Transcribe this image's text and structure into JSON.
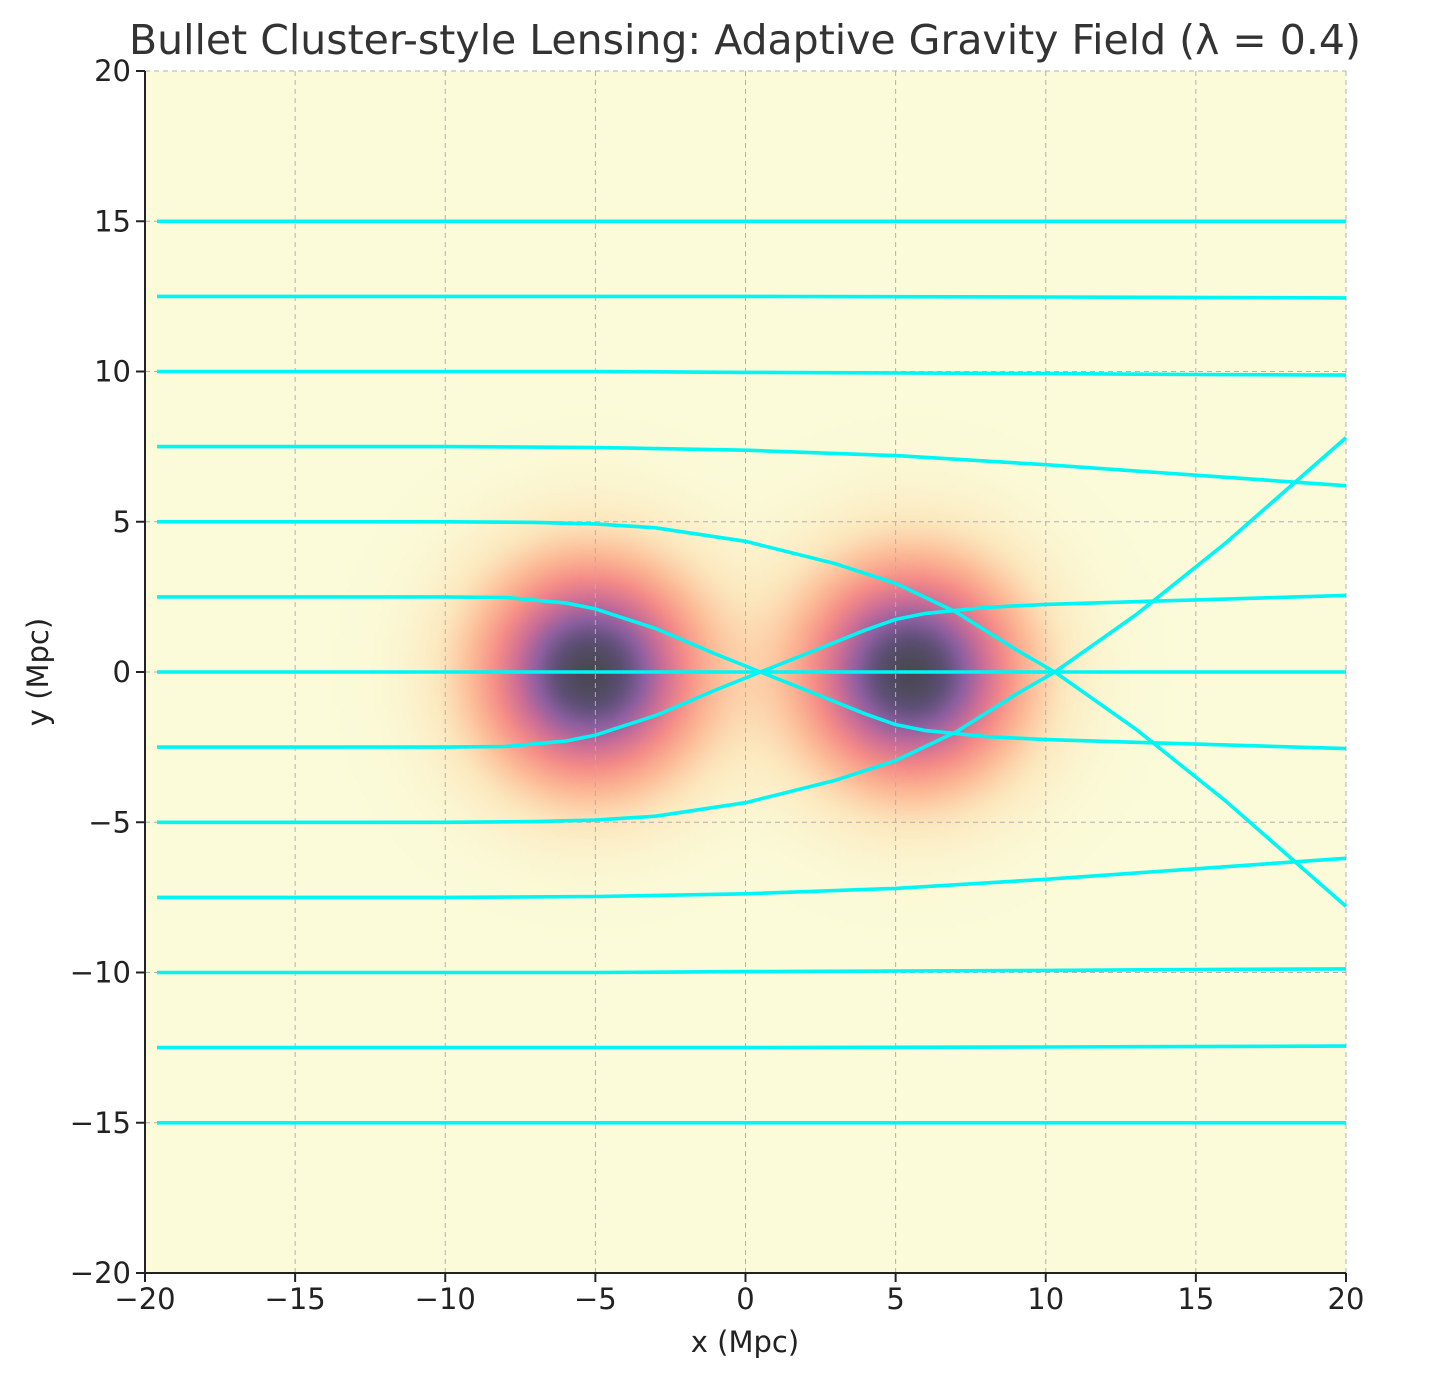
{
  "chart_data": {
    "type": "line",
    "title": "Bullet Cluster-style Lensing: Adaptive Gravity Field (λ = 0.4)",
    "xlabel": "x (Mpc)",
    "ylabel": "y (Mpc)",
    "xlim": [
      -20,
      20
    ],
    "ylim": [
      -20,
      20
    ],
    "xticks": [
      -20,
      -15,
      -10,
      -5,
      0,
      5,
      10,
      15,
      20
    ],
    "yticks": [
      -20,
      -15,
      -10,
      -5,
      0,
      5,
      10,
      15,
      20
    ],
    "xtick_labels": [
      "−20",
      "−15",
      "−10",
      "−5",
      "0",
      "5",
      "10",
      "15",
      "20"
    ],
    "ytick_labels": [
      "−20",
      "−15",
      "−10",
      "−5",
      "0",
      "5",
      "10",
      "15",
      "20"
    ],
    "grid": true,
    "background_color": "#fbfbd9",
    "ray_color": "#00f5f5",
    "density_field": {
      "colormap": "magma-like",
      "peaks": [
        {
          "x": -5.2,
          "y": 0.0,
          "sigma": 2.5
        },
        {
          "x": 5.5,
          "y": 0.0,
          "sigma": 2.5
        }
      ]
    },
    "series": [
      {
        "x": [
          -19.6,
          0,
          10,
          20
        ],
        "y": [
          15,
          15,
          15,
          15
        ]
      },
      {
        "x": [
          -19.6,
          0,
          10,
          20
        ],
        "y": [
          12.5,
          12.5,
          12.48,
          12.45
        ]
      },
      {
        "x": [
          -19.6,
          -5,
          0,
          5,
          10,
          15,
          20
        ],
        "y": [
          10,
          10,
          9.97,
          9.95,
          9.93,
          9.9,
          9.88
        ]
      },
      {
        "x": [
          -19.6,
          -10,
          -5,
          0,
          5,
          10,
          15,
          20
        ],
        "y": [
          7.5,
          7.5,
          7.47,
          7.38,
          7.2,
          6.9,
          6.55,
          6.2
        ]
      },
      {
        "x": [
          -19.6,
          -10,
          -7,
          -5,
          -3,
          0,
          3,
          5,
          7,
          9,
          10.3,
          13,
          16,
          20
        ],
        "y": [
          5,
          5,
          4.98,
          4.93,
          4.8,
          4.35,
          3.6,
          2.95,
          2.0,
          0.75,
          0,
          -1.9,
          -4.3,
          -7.8
        ]
      },
      {
        "x": [
          -19.6,
          -10,
          -8,
          -6,
          -5,
          -3,
          -1,
          0.5,
          2,
          4,
          5,
          6,
          7,
          8,
          10,
          15,
          20
        ],
        "y": [
          2.5,
          2.5,
          2.48,
          2.3,
          2.1,
          1.45,
          0.6,
          0,
          -0.6,
          -1.4,
          -1.75,
          -1.95,
          -2.05,
          -2.15,
          -2.25,
          -2.4,
          -2.55
        ]
      },
      {
        "x": [
          -19.6,
          20
        ],
        "y": [
          0,
          0
        ]
      },
      {
        "x": [
          -19.6,
          -10,
          -8,
          -6,
          -5,
          -3,
          -1,
          0.5,
          2,
          4,
          5,
          6,
          7,
          8,
          10,
          15,
          20
        ],
        "y": [
          -2.5,
          -2.5,
          -2.48,
          -2.3,
          -2.1,
          -1.45,
          -0.6,
          0,
          0.6,
          1.4,
          1.75,
          1.95,
          2.05,
          2.15,
          2.25,
          2.4,
          2.55
        ]
      },
      {
        "x": [
          -19.6,
          -10,
          -7,
          -5,
          -3,
          0,
          3,
          5,
          7,
          9,
          10.3,
          13,
          16,
          20
        ],
        "y": [
          -5,
          -5,
          -4.98,
          -4.93,
          -4.8,
          -4.35,
          -3.6,
          -2.95,
          -2.0,
          -0.75,
          0,
          1.9,
          4.3,
          7.8
        ]
      },
      {
        "x": [
          -19.6,
          -10,
          -5,
          0,
          5,
          10,
          15,
          20
        ],
        "y": [
          -7.5,
          -7.5,
          -7.47,
          -7.38,
          -7.2,
          -6.9,
          -6.55,
          -6.2
        ]
      },
      {
        "x": [
          -19.6,
          -5,
          0,
          5,
          10,
          15,
          20
        ],
        "y": [
          -10,
          -10,
          -9.97,
          -9.95,
          -9.93,
          -9.9,
          -9.88
        ]
      },
      {
        "x": [
          -19.6,
          0,
          10,
          20
        ],
        "y": [
          -12.5,
          -12.5,
          -12.48,
          -12.45
        ]
      },
      {
        "x": [
          -19.6,
          0,
          10,
          20
        ],
        "y": [
          -15,
          -15,
          -15,
          -15
        ]
      }
    ]
  }
}
